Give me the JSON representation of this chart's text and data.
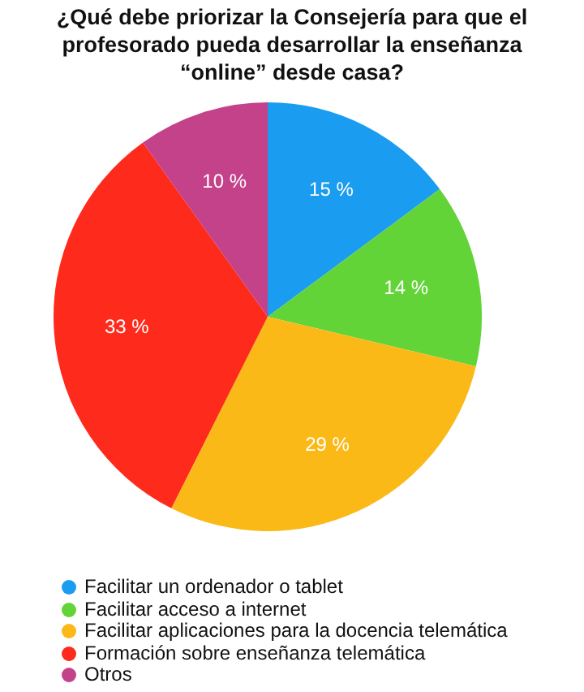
{
  "chart_data": {
    "type": "pie",
    "title": "¿Qué debe priorizar la Consejería para que el profesorado pueda desarrollar la enseñanza “online” desde casa?",
    "categories": [
      "Facilitar un ordenador o tablet",
      "Facilitar acceso a internet",
      "Facilitar aplicaciones para la docencia telemática",
      "Formación sobre enseñanza telemática",
      "Otros"
    ],
    "values": [
      15,
      14,
      29,
      33,
      10
    ],
    "colors": [
      "#1a9cf0",
      "#63d438",
      "#fbb918",
      "#fe2a1b",
      "#c4428a"
    ],
    "value_labels": [
      "15 %",
      "14 %",
      "29 %",
      "33 %",
      "10 %"
    ],
    "legend": "bottom left"
  }
}
